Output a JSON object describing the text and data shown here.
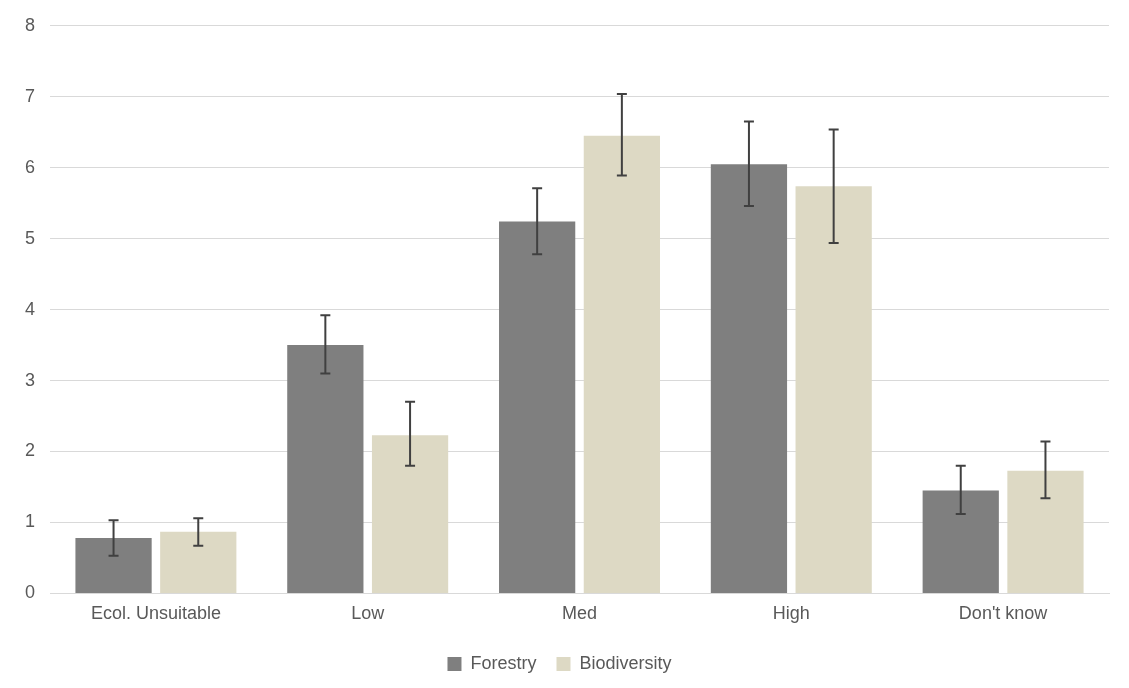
{
  "chart_data": {
    "type": "bar",
    "categories": [
      "Ecol. Unsuitable",
      "Low",
      "Med",
      "High",
      "Don't know"
    ],
    "series": [
      {
        "name": "Forestry",
        "color": "#7f7f7f",
        "values": [
          0.78,
          3.5,
          5.24,
          6.05,
          1.45
        ],
        "errors": [
          [
            0.53,
            1.03
          ],
          [
            3.1,
            3.92
          ],
          [
            4.78,
            5.71
          ],
          [
            5.46,
            6.65
          ],
          [
            1.12,
            1.8
          ]
        ]
      },
      {
        "name": "Biodiversity",
        "color": "#ddd9c4",
        "values": [
          0.87,
          2.23,
          6.45,
          5.74,
          1.73
        ],
        "errors": [
          [
            0.67,
            1.06
          ],
          [
            1.8,
            2.7
          ],
          [
            5.89,
            7.04
          ],
          [
            4.94,
            6.54
          ],
          [
            1.34,
            2.14
          ]
        ]
      }
    ],
    "ylim": [
      0,
      8
    ],
    "yticks": [
      0,
      1,
      2,
      3,
      4,
      5,
      6,
      7,
      8
    ],
    "grid": "y",
    "legend": "bottom"
  }
}
